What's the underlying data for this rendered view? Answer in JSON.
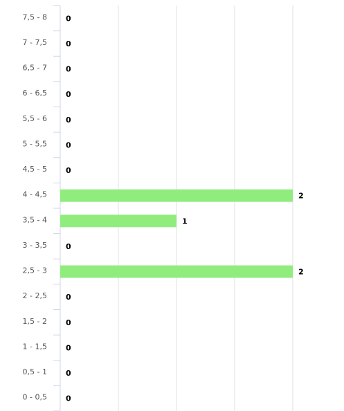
{
  "chart_data": {
    "type": "hbar",
    "categories": [
      "0 - 0,5",
      "0,5 - 1",
      "1 - 1,5",
      "1,5 - 2",
      "2 - 2,5",
      "2,5 - 3",
      "3 - 3,5",
      "3,5 - 4",
      "4 - 4,5",
      "4,5 - 5",
      "5 - 5,5",
      "5,5 - 6",
      "6 - 6,5",
      "6,5 - 7",
      "7 - 7,5",
      "7,5 - 8"
    ],
    "values": [
      0,
      0,
      0,
      0,
      0,
      2,
      0,
      1,
      2,
      0,
      0,
      0,
      0,
      0,
      0,
      0
    ],
    "color": "#90ed7d",
    "xlim": [
      0,
      2
    ],
    "xticks": [
      0,
      0.5,
      1,
      1.5,
      2
    ],
    "grid": true
  }
}
